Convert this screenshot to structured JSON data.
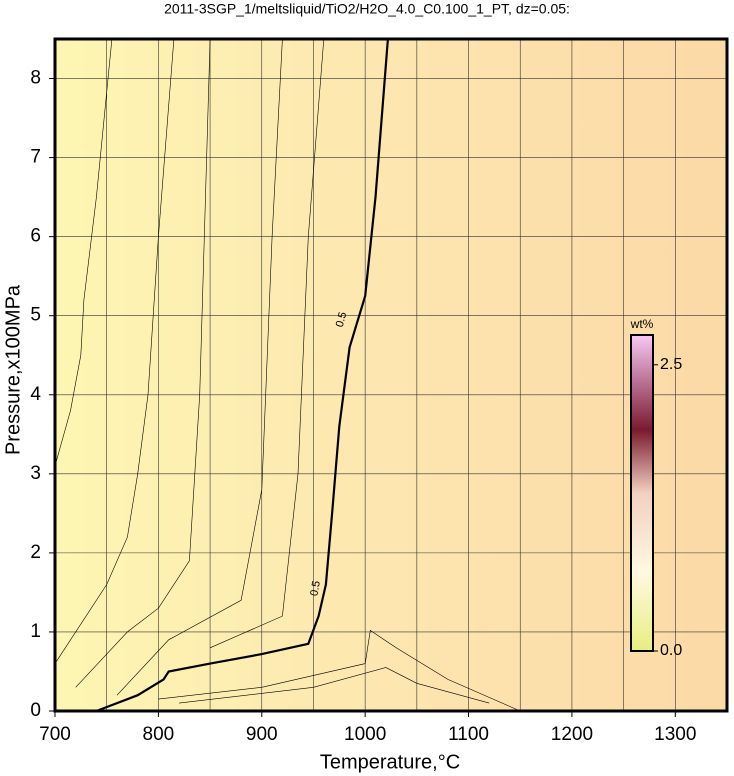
{
  "chart_data": {
    "type": "contour",
    "title": "2011-3SGP_1/meltsliquid/TiO2/H2O_4.0_C0.100_1_PT, dz=0.05:",
    "x_label": "Temperature,°C",
    "y_label": "Pressure,x100MPa",
    "xlim": [
      700,
      1350
    ],
    "ylim": [
      0,
      8.5
    ],
    "xticks": [
      700,
      800,
      900,
      1000,
      1100,
      1200,
      1300
    ],
    "yticks": [
      0,
      1,
      2,
      3,
      4,
      5,
      6,
      7,
      8
    ],
    "x_grid": [
      750,
      850,
      950,
      1050,
      1150,
      1250,
      1350
    ],
    "grid": true,
    "main_contour": {
      "label": "0.5",
      "x": [
        740,
        780,
        805,
        810,
        850,
        900,
        945,
        955,
        962,
        968,
        975,
        985,
        1000,
        1010,
        1022
      ],
      "y": [
        0,
        0.2,
        0.4,
        0.5,
        0.6,
        0.72,
        0.85,
        1.2,
        1.6,
        2.5,
        3.6,
        4.6,
        5.25,
        6.5,
        8.5
      ]
    },
    "contours": [
      {
        "x": [
          700,
          715,
          725,
          728,
          740,
          755
        ],
        "y": [
          3.1,
          3.8,
          4.5,
          5.2,
          6.5,
          8.5
        ]
      },
      {
        "x": [
          700,
          750,
          770,
          780,
          790,
          800,
          815
        ],
        "y": [
          0.6,
          1.6,
          2.2,
          3,
          4,
          6,
          8.5
        ]
      },
      {
        "x": [
          720,
          770,
          800,
          830,
          840,
          850
        ],
        "y": [
          0.3,
          1.0,
          1.3,
          1.9,
          4,
          8.5
        ]
      },
      {
        "x": [
          760,
          810,
          880,
          900,
          910,
          920
        ],
        "y": [
          0.2,
          0.9,
          1.4,
          2.8,
          6,
          8.5
        ]
      },
      {
        "x": [
          850,
          920,
          935,
          945,
          960
        ],
        "y": [
          0.8,
          1.2,
          3,
          6,
          8.5
        ]
      },
      {
        "x": [
          800,
          900,
          1000,
          1005,
          1030,
          1080,
          1150
        ],
        "y": [
          0.15,
          0.3,
          0.6,
          1.02,
          0.8,
          0.4,
          0
        ]
      },
      {
        "x": [
          820,
          950,
          1020,
          1050,
          1120
        ],
        "y": [
          0.1,
          0.3,
          0.55,
          0.35,
          0.1
        ]
      }
    ],
    "colorbar": {
      "label": "wt%",
      "clim": [
        0,
        2.76
      ],
      "ticks": [
        {
          "value": 0,
          "label": "0.0"
        },
        2.5
      ]
    }
  }
}
